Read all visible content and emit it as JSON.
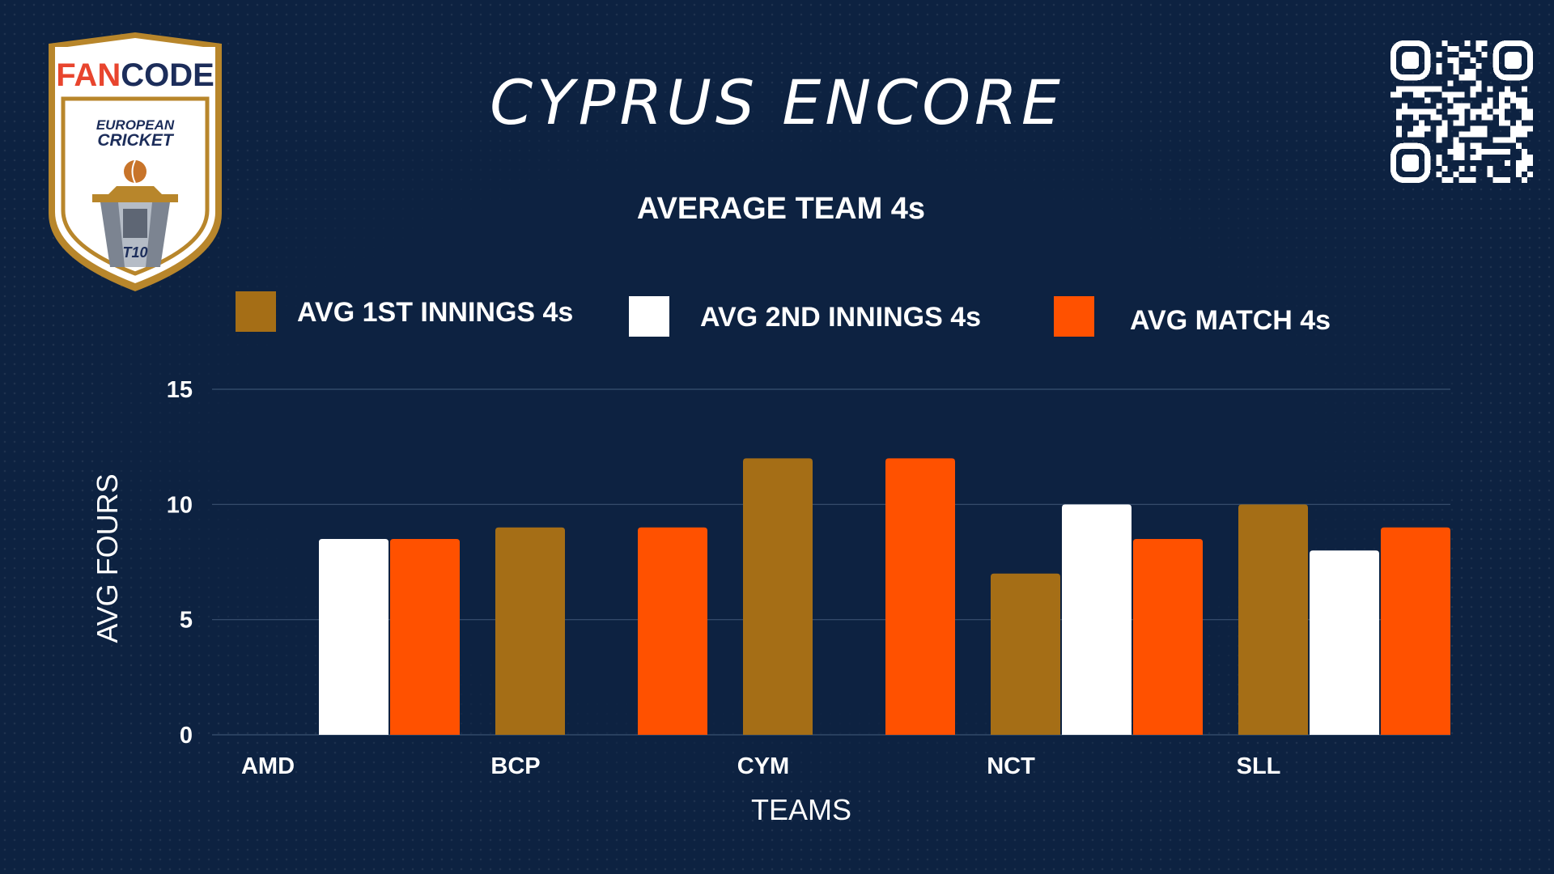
{
  "header": {
    "title": "CYPRUS ENCORE",
    "logo": {
      "brand_left": "FAN",
      "brand_right": "CODE",
      "line1": "EUROPEAN",
      "line2": "CRICKET",
      "format": "T10"
    },
    "qr_icon": "qr-code-icon"
  },
  "colors": {
    "background": "#0d2241",
    "series_1": "#a56e16",
    "series_2": "#ffffff",
    "series_3": "#ff5100",
    "gridline": "#3a5170"
  },
  "chart_data": {
    "type": "bar",
    "title": "AVERAGE TEAM 4s",
    "xlabel": "TEAMS",
    "ylabel": "AVG FOURS",
    "categories": [
      "AMD",
      "BCP",
      "CYM",
      "NCT",
      "SLL"
    ],
    "series": [
      {
        "name": "AVG 1ST INNINGS 4s",
        "values": [
          0,
          9,
          12,
          7,
          10
        ]
      },
      {
        "name": "AVG 2ND INNINGS 4s",
        "values": [
          8.5,
          0,
          0,
          10,
          8
        ]
      },
      {
        "name": "AVG MATCH 4s",
        "values": [
          8.5,
          9,
          12,
          8.5,
          9
        ]
      }
    ],
    "ylim": [
      0,
      15
    ],
    "yticks": [
      "0",
      "5",
      "10",
      "15"
    ],
    "grid": true,
    "legend": "top"
  }
}
